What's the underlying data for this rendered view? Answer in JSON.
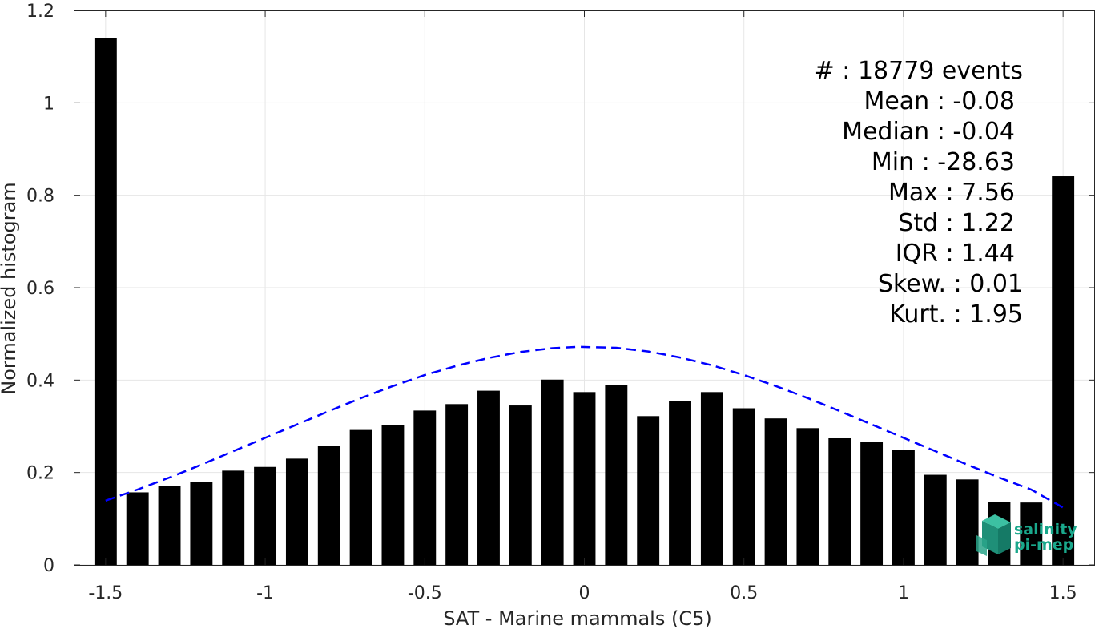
{
  "chart_data": {
    "type": "bar",
    "xlabel": "SAT - Marine mammals (C5)",
    "ylabel": "Normalized histogram",
    "xlim": [
      -1.6,
      1.6
    ],
    "ylim": [
      0,
      1.2
    ],
    "xticks": [
      -1.5,
      -1,
      -0.5,
      0,
      0.5,
      1,
      1.5
    ],
    "xtick_labels": [
      "-1.5",
      "-1",
      "-0.5",
      "0",
      "0.5",
      "1",
      "1.5"
    ],
    "yticks": [
      0,
      0.2,
      0.4,
      0.6,
      0.8,
      1,
      1.2
    ],
    "ytick_labels": [
      "0",
      "0.2",
      "0.4",
      "0.6",
      "0.8",
      "1",
      "1.2"
    ],
    "grid": true,
    "bar_color": "#000000",
    "bar_width": 0.07,
    "x": [
      -1.5,
      -1.4,
      -1.3,
      -1.2,
      -1.1,
      -1.0,
      -0.9,
      -0.8,
      -0.7,
      -0.6,
      -0.5,
      -0.4,
      -0.3,
      -0.2,
      -0.1,
      0.0,
      0.1,
      0.2,
      0.3,
      0.4,
      0.5,
      0.6,
      0.7,
      0.8,
      0.9,
      1.0,
      1.1,
      1.2,
      1.3,
      1.4,
      1.5
    ],
    "values": [
      1.14,
      0.157,
      0.171,
      0.179,
      0.204,
      0.212,
      0.23,
      0.257,
      0.292,
      0.302,
      0.334,
      0.348,
      0.377,
      0.345,
      0.401,
      0.374,
      0.39,
      0.322,
      0.355,
      0.374,
      0.339,
      0.317,
      0.296,
      0.274,
      0.266,
      0.248,
      0.195,
      0.185,
      0.136,
      0.135,
      0.841
    ],
    "fit_curve": {
      "style": "dashed",
      "color": "#0000ff",
      "x": [
        -1.5,
        -1.4,
        -1.3,
        -1.2,
        -1.1,
        -1.0,
        -0.9,
        -0.8,
        -0.7,
        -0.6,
        -0.5,
        -0.4,
        -0.3,
        -0.2,
        -0.1,
        -0.02,
        0.1,
        0.2,
        0.3,
        0.4,
        0.5,
        0.6,
        0.7,
        0.8,
        0.9,
        1.0,
        1.1,
        1.2,
        1.3,
        1.4,
        1.5
      ],
      "y": [
        0.139,
        0.163,
        0.189,
        0.217,
        0.246,
        0.275,
        0.304,
        0.333,
        0.361,
        0.387,
        0.411,
        0.431,
        0.448,
        0.461,
        0.469,
        0.472,
        0.47,
        0.462,
        0.449,
        0.432,
        0.411,
        0.387,
        0.361,
        0.333,
        0.304,
        0.275,
        0.246,
        0.217,
        0.189,
        0.163,
        0.124
      ]
    },
    "annotations": [
      "#  : 18779 events",
      "Mean : -0.08",
      "Median : -0.04",
      "Min : -28.63",
      "Max : 7.56",
      "Std : 1.22",
      "IQR : 1.44",
      "Skew. : 0.01",
      "Kurt. : 1.95"
    ]
  },
  "logo": {
    "line1": "salinity",
    "line2": "pi-mep",
    "color": "#1aa88c"
  }
}
